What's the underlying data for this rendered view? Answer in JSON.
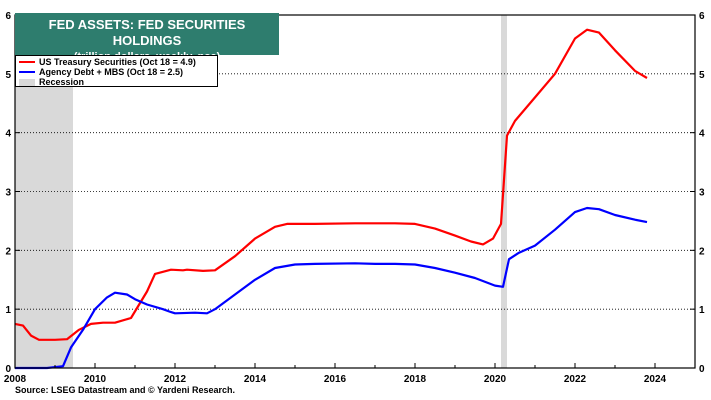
{
  "chart_data": {
    "type": "line",
    "title": "FED ASSETS: FED SECURITIES HOLDINGS",
    "subtitle": "(trillion dollars, weekly, nsa)",
    "source": "Source: LSEG Datastream and © Yardeni Research.",
    "xlim": [
      2008,
      2025
    ],
    "ylim": [
      0,
      6
    ],
    "x_ticks": [
      "2008",
      "2010",
      "2012",
      "2014",
      "2016",
      "2018",
      "2020",
      "2022",
      "2024"
    ],
    "y_ticks": [
      "0",
      "1",
      "2",
      "3",
      "4",
      "5",
      "6"
    ],
    "recessions": [
      [
        2008.0,
        2009.45
      ],
      [
        2020.15,
        2020.3
      ]
    ],
    "legend": [
      {
        "label": "US Treasury Securities (Oct 18 = 4.9)",
        "color": "#ff0000",
        "kind": "line"
      },
      {
        "label": "Agency Debt + MBS (Oct 18 = 2.5)",
        "color": "#0000ff",
        "kind": "line"
      },
      {
        "label": "Recession",
        "color": "#d9d9d9",
        "kind": "box"
      }
    ],
    "series": [
      {
        "name": "US Treasury Securities (Oct 18 = 4.9)",
        "color": "#ff0000",
        "points": [
          [
            2008.0,
            0.75
          ],
          [
            2008.2,
            0.72
          ],
          [
            2008.4,
            0.55
          ],
          [
            2008.6,
            0.48
          ],
          [
            2009.0,
            0.48
          ],
          [
            2009.3,
            0.49
          ],
          [
            2009.6,
            0.65
          ],
          [
            2009.9,
            0.75
          ],
          [
            2010.2,
            0.77
          ],
          [
            2010.5,
            0.77
          ],
          [
            2010.9,
            0.85
          ],
          [
            2011.3,
            1.3
          ],
          [
            2011.5,
            1.6
          ],
          [
            2011.9,
            1.67
          ],
          [
            2012.2,
            1.66
          ],
          [
            2012.3,
            1.67
          ],
          [
            2012.7,
            1.65
          ],
          [
            2013.0,
            1.66
          ],
          [
            2013.5,
            1.9
          ],
          [
            2014.0,
            2.2
          ],
          [
            2014.5,
            2.4
          ],
          [
            2014.8,
            2.45
          ],
          [
            2015.5,
            2.45
          ],
          [
            2016.5,
            2.46
          ],
          [
            2017.5,
            2.46
          ],
          [
            2018.0,
            2.45
          ],
          [
            2018.5,
            2.37
          ],
          [
            2019.0,
            2.25
          ],
          [
            2019.4,
            2.15
          ],
          [
            2019.7,
            2.1
          ],
          [
            2019.95,
            2.2
          ],
          [
            2020.15,
            2.45
          ],
          [
            2020.3,
            3.95
          ],
          [
            2020.5,
            4.2
          ],
          [
            2021.0,
            4.6
          ],
          [
            2021.5,
            5.0
          ],
          [
            2022.0,
            5.6
          ],
          [
            2022.3,
            5.75
          ],
          [
            2022.6,
            5.7
          ],
          [
            2023.0,
            5.4
          ],
          [
            2023.5,
            5.05
          ],
          [
            2023.8,
            4.93
          ]
        ]
      },
      {
        "name": "Agency Debt + MBS (Oct 18 = 2.5)",
        "color": "#0000ff",
        "points": [
          [
            2008.0,
            0.0
          ],
          [
            2008.8,
            0.0
          ],
          [
            2009.2,
            0.03
          ],
          [
            2009.4,
            0.35
          ],
          [
            2009.7,
            0.65
          ],
          [
            2010.0,
            1.0
          ],
          [
            2010.3,
            1.2
          ],
          [
            2010.5,
            1.28
          ],
          [
            2010.8,
            1.25
          ],
          [
            2011.0,
            1.17
          ],
          [
            2011.3,
            1.08
          ],
          [
            2011.7,
            1.0
          ],
          [
            2011.9,
            0.95
          ],
          [
            2012.0,
            0.93
          ],
          [
            2012.5,
            0.94
          ],
          [
            2012.8,
            0.93
          ],
          [
            2013.0,
            1.0
          ],
          [
            2013.5,
            1.25
          ],
          [
            2014.0,
            1.5
          ],
          [
            2014.5,
            1.7
          ],
          [
            2015.0,
            1.76
          ],
          [
            2015.5,
            1.77
          ],
          [
            2016.5,
            1.78
          ],
          [
            2017.0,
            1.77
          ],
          [
            2017.5,
            1.77
          ],
          [
            2018.0,
            1.76
          ],
          [
            2018.5,
            1.7
          ],
          [
            2019.0,
            1.62
          ],
          [
            2019.5,
            1.53
          ],
          [
            2020.0,
            1.4
          ],
          [
            2020.2,
            1.38
          ],
          [
            2020.35,
            1.85
          ],
          [
            2020.6,
            1.96
          ],
          [
            2021.0,
            2.08
          ],
          [
            2021.5,
            2.35
          ],
          [
            2022.0,
            2.65
          ],
          [
            2022.3,
            2.72
          ],
          [
            2022.6,
            2.7
          ],
          [
            2023.0,
            2.6
          ],
          [
            2023.5,
            2.52
          ],
          [
            2023.8,
            2.48
          ]
        ]
      }
    ]
  }
}
